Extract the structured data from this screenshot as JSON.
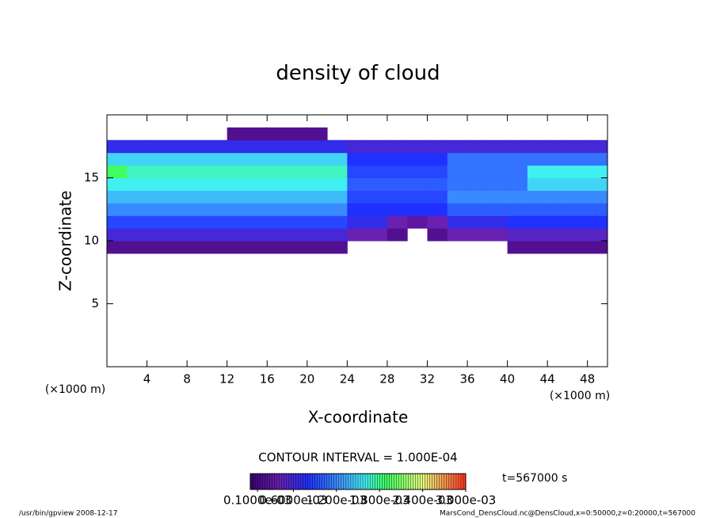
{
  "chart_data": {
    "type": "contour",
    "title": "density of cloud",
    "x_label": "X-coordinate",
    "y_label": "Z-coordinate",
    "x_unit": "(×1000 m)",
    "y_unit": "(×1000 m)",
    "xlim": [
      0,
      50
    ],
    "ylim": [
      0,
      20
    ],
    "xticks": [
      4,
      8,
      12,
      16,
      20,
      24,
      28,
      32,
      36,
      40,
      44,
      48
    ],
    "yticks": [
      5,
      10,
      15
    ],
    "x": [
      1,
      3,
      5,
      7,
      9,
      11,
      13,
      15,
      17,
      19,
      21,
      23,
      25,
      27,
      29,
      31,
      33,
      35,
      37,
      39,
      41,
      43,
      45,
      47,
      49
    ],
    "y": [
      9.5,
      10.5,
      11.5,
      12.5,
      13.5,
      14.5,
      15.5,
      16.5,
      17.5,
      18.5
    ],
    "z": [
      [
        0.0002,
        0.0002,
        0.0002,
        0.0002,
        0.0002,
        0.0002,
        0.0002,
        0.0002,
        0.0002,
        0.0002,
        0.0002,
        0.0002,
        null,
        null,
        null,
        null,
        null,
        null,
        null,
        null,
        0.0002,
        0.0002,
        0.0002,
        0.0002,
        0.0002
      ],
      [
        0.0006,
        0.0006,
        0.0006,
        0.0006,
        0.0006,
        0.0006,
        0.0006,
        0.0006,
        0.0006,
        0.0006,
        0.0006,
        0.0006,
        0.0004,
        0.0004,
        0.0002,
        null,
        0.0002,
        0.0004,
        0.0004,
        0.0004,
        0.0005,
        0.0005,
        0.0005,
        0.0005,
        0.0005
      ],
      [
        0.0009,
        0.0009,
        0.0009,
        0.0009,
        0.0009,
        0.0009,
        0.0009,
        0.0009,
        0.0009,
        0.0009,
        0.0009,
        0.0009,
        0.0007,
        0.0007,
        0.0004,
        0.0003,
        0.0004,
        0.0007,
        0.0007,
        0.0007,
        0.0008,
        0.0008,
        0.0008,
        0.0008,
        0.0008
      ],
      [
        0.0012,
        0.0012,
        0.0012,
        0.0012,
        0.0012,
        0.0012,
        0.0012,
        0.0012,
        0.0012,
        0.0012,
        0.0012,
        0.0012,
        0.0008,
        0.0008,
        0.0008,
        0.0008,
        0.0008,
        0.001,
        0.001,
        0.001,
        0.001,
        0.001,
        0.001,
        0.001,
        0.001
      ],
      [
        0.0014,
        0.0014,
        0.0014,
        0.0014,
        0.0014,
        0.0014,
        0.0014,
        0.0014,
        0.0014,
        0.0014,
        0.0014,
        0.0014,
        0.0009,
        0.0009,
        0.0009,
        0.0009,
        0.0009,
        0.0012,
        0.0012,
        0.0012,
        0.0012,
        0.0012,
        0.0012,
        0.0012,
        0.0012
      ],
      [
        0.0016,
        0.0016,
        0.0016,
        0.0016,
        0.0016,
        0.0016,
        0.0016,
        0.0016,
        0.0016,
        0.0016,
        0.0016,
        0.0016,
        0.001,
        0.001,
        0.001,
        0.001,
        0.001,
        0.0011,
        0.0011,
        0.0011,
        0.0011,
        0.0015,
        0.0015,
        0.0015,
        0.0015
      ],
      [
        0.0019,
        0.0017,
        0.0017,
        0.0017,
        0.0017,
        0.0017,
        0.0017,
        0.0017,
        0.0017,
        0.0017,
        0.0017,
        0.0017,
        0.0009,
        0.0009,
        0.0009,
        0.0009,
        0.0009,
        0.0011,
        0.0011,
        0.0011,
        0.0011,
        0.0016,
        0.0016,
        0.0016,
        0.0016
      ],
      [
        0.0015,
        0.0015,
        0.0015,
        0.0015,
        0.0015,
        0.0015,
        0.0015,
        0.0015,
        0.0015,
        0.0015,
        0.0015,
        0.0015,
        0.0008,
        0.0008,
        0.0008,
        0.0008,
        0.0008,
        0.0011,
        0.0011,
        0.0011,
        0.0011,
        0.0011,
        0.0011,
        0.0011,
        0.0011
      ],
      [
        0.0007,
        0.0007,
        0.0007,
        0.0007,
        0.0007,
        0.0007,
        0.0007,
        0.0007,
        0.0007,
        0.0007,
        0.0007,
        0.0007,
        0.0006,
        0.0006,
        0.0006,
        0.0006,
        0.0006,
        0.0006,
        0.0006,
        0.0006,
        0.0006,
        0.0006,
        0.0006,
        0.0006,
        0.0006
      ],
      [
        null,
        null,
        null,
        null,
        null,
        null,
        0.0002,
        0.0002,
        0.0002,
        0.0002,
        0.0002,
        null,
        null,
        null,
        null,
        null,
        null,
        null,
        null,
        null,
        null,
        null,
        null,
        null,
        null
      ]
    ],
    "clim": [
      0,
      0.003
    ],
    "colorscale": [
      [
        0,
        "#3a0070"
      ],
      [
        0.0004,
        "#6a20b0"
      ],
      [
        0.0008,
        "#2030ff"
      ],
      [
        0.0013,
        "#40a0ff"
      ],
      [
        0.0016,
        "#40f0f0"
      ],
      [
        0.0019,
        "#40ff60"
      ],
      [
        0.0024,
        "#e8ff80"
      ],
      [
        0.003,
        "#ff3020"
      ]
    ],
    "contour_interval": "CONTOUR INTERVAL = 1.000E-04",
    "time_label": "t=567000 s",
    "colorbar_ticks": [
      {
        "value": 0.0001,
        "label": "0.1000e-03"
      },
      {
        "value": 0.0006,
        "label": "0.6000e-03"
      },
      {
        "value": 0.0012,
        "label": "1.200e-03"
      },
      {
        "value": 0.0018,
        "label": "1.800e-03"
      },
      {
        "value": 0.0024,
        "label": "2.400e-03"
      },
      {
        "value": 0.003,
        "label": "3.000e-03"
      }
    ],
    "footer_left": "/usr/bin/gpview   2008-12-17",
    "footer_right": "MarsCond_DensCloud.nc@DensCloud,x=0:50000,z=0:20000,t=567000"
  }
}
